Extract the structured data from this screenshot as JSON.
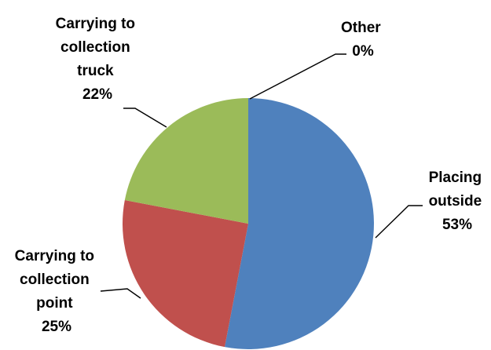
{
  "chart_data": {
    "type": "pie",
    "title": "",
    "legend": "none",
    "start_angle_deg": 0,
    "direction": "clockwise",
    "slices": [
      {
        "label_lines": [
          "Placing",
          "outside"
        ],
        "value": 53,
        "value_label": "53%",
        "color": "#4F81BD"
      },
      {
        "label_lines": [
          "Carrying to",
          "collection",
          "point"
        ],
        "value": 25,
        "value_label": "25%",
        "color": "#C0504D"
      },
      {
        "label_lines": [
          "Carrying to",
          "collection",
          "truck"
        ],
        "value": 22,
        "value_label": "22%",
        "color": "#9BBB59"
      },
      {
        "label_lines": [
          "Other"
        ],
        "value": 0,
        "value_label": "0%",
        "color": "#8064A2"
      }
    ]
  }
}
